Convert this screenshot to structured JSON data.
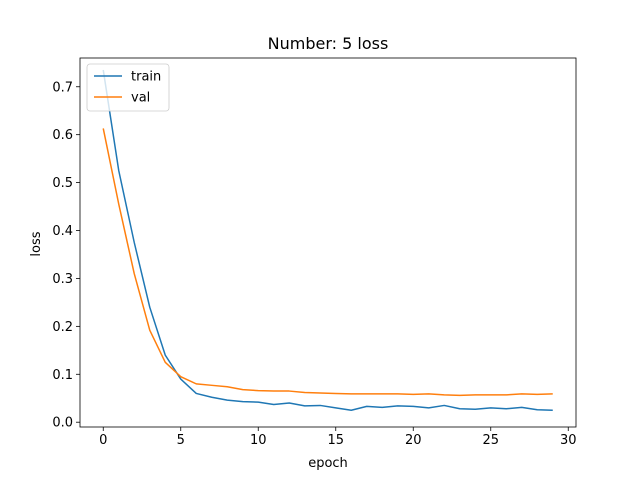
{
  "chart_data": {
    "type": "line",
    "title": "Number: 5 loss",
    "xlabel": "epoch",
    "ylabel": "loss",
    "xlim": [
      -1.5,
      30.5
    ],
    "ylim": [
      -0.01,
      0.76
    ],
    "xticks": [
      0,
      5,
      10,
      15,
      20,
      25,
      30
    ],
    "yticks": [
      0.0,
      0.1,
      0.2,
      0.3,
      0.4,
      0.5,
      0.6,
      0.7
    ],
    "ytick_labels": [
      "0.0",
      "0.1",
      "0.2",
      "0.3",
      "0.4",
      "0.5",
      "0.6",
      "0.7"
    ],
    "grid": false,
    "legend_position": "upper left",
    "x": [
      0,
      1,
      2,
      3,
      4,
      5,
      6,
      7,
      8,
      9,
      10,
      11,
      12,
      13,
      14,
      15,
      16,
      17,
      18,
      19,
      20,
      21,
      22,
      23,
      24,
      25,
      26,
      27,
      28,
      29
    ],
    "series": [
      {
        "name": "train",
        "color": "#1f77b4",
        "values": [
          0.735,
          0.525,
          0.375,
          0.24,
          0.14,
          0.09,
          0.06,
          0.052,
          0.046,
          0.043,
          0.042,
          0.037,
          0.04,
          0.034,
          0.035,
          0.03,
          0.025,
          0.033,
          0.031,
          0.034,
          0.033,
          0.03,
          0.035,
          0.028,
          0.027,
          0.03,
          0.028,
          0.031,
          0.026,
          0.025
        ]
      },
      {
        "name": "val",
        "color": "#ff7f0e",
        "values": [
          0.613,
          0.455,
          0.31,
          0.192,
          0.125,
          0.095,
          0.08,
          0.077,
          0.074,
          0.068,
          0.066,
          0.065,
          0.065,
          0.062,
          0.061,
          0.06,
          0.059,
          0.059,
          0.059,
          0.059,
          0.058,
          0.059,
          0.057,
          0.056,
          0.057,
          0.057,
          0.057,
          0.059,
          0.058,
          0.059
        ]
      }
    ]
  }
}
